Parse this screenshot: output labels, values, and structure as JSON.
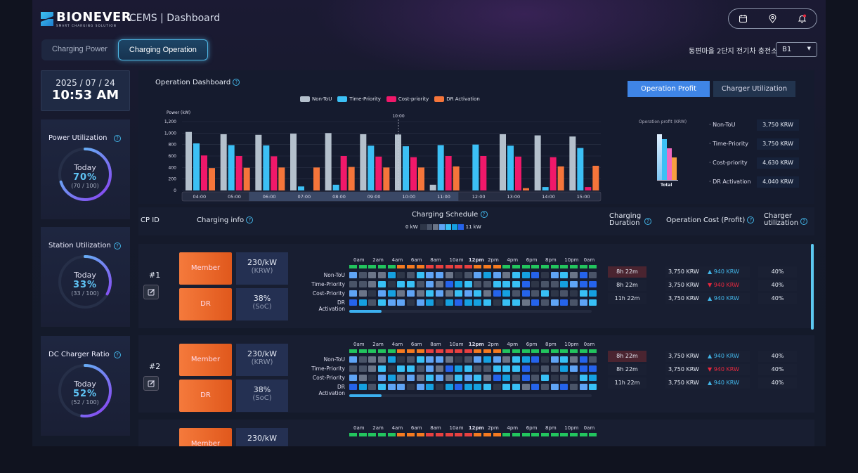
{
  "header": {
    "logo": "BIONEVER",
    "logo_sub": "SMART CHARGING SOLUTION",
    "title": "CEMS | Dashboard",
    "station": "동편마을 2단지 전기차 충전소",
    "station_select": "B1"
  },
  "tabs": [
    {
      "label": "Charging Power"
    },
    {
      "label": "Charging Operation"
    }
  ],
  "datetime": {
    "date": "2025 / 07 / 24",
    "time": "10:53 AM"
  },
  "gauges": [
    {
      "title": "Power Utilization",
      "today": "Today",
      "pct": "70%",
      "frac": "(70 / 100)",
      "value": 0.7
    },
    {
      "title": "Station Utilization",
      "today": "Today",
      "pct": "33%",
      "frac": "(33 / 100)",
      "value": 0.33
    },
    {
      "title": "DC Charger Ratio",
      "today": "Today",
      "pct": "52%",
      "frac": "(52 / 100)",
      "value": 0.52
    }
  ],
  "dashboard": {
    "title": "Operation Dashboard",
    "tab_profit": "Operation Profit",
    "tab_util": "Charger Utilization",
    "profit_label": "Operation profit (KRW)",
    "profit_total": "Total",
    "profit": [
      {
        "label": "· Non-ToU",
        "value": "3,750 KRW"
      },
      {
        "label": "· Time-Priority",
        "value": "3,750 KRW"
      },
      {
        "label": "· Cost-priority",
        "value": "4,630 KRW"
      },
      {
        "label": "· DR Activation",
        "value": "4,040 KRW"
      }
    ]
  },
  "chart_data": {
    "type": "bar",
    "ylabel": "Power (kW)",
    "ylim": [
      0,
      1200
    ],
    "yticks": [
      "0",
      "200",
      "400",
      "600",
      "800",
      "1,000",
      "1,200"
    ],
    "categories": [
      "04:00",
      "05:00",
      "06:00",
      "07:00",
      "08:00",
      "09:00",
      "10:00",
      "11:00",
      "12:00",
      "13:00",
      "14:00",
      "15:00"
    ],
    "marker": "10:00",
    "series": [
      {
        "name": "Non-ToU",
        "color": "#b4c0cc",
        "values": [
          1020,
          980,
          970,
          990,
          1000,
          980,
          975,
          100,
          0,
          980,
          960,
          940
        ]
      },
      {
        "name": "Time-Priority",
        "color": "#3cc0f5",
        "values": [
          820,
          790,
          785,
          70,
          100,
          780,
          770,
          790,
          800,
          780,
          60,
          740
        ]
      },
      {
        "name": "Cost-priority",
        "color": "#f0186a",
        "values": [
          610,
          600,
          595,
          0,
          600,
          590,
          580,
          600,
          600,
          590,
          580,
          60
        ]
      },
      {
        "name": "DR Activation",
        "color": "#f5753a",
        "values": [
          390,
          395,
          400,
          400,
          410,
          400,
          400,
          420,
          0,
          40,
          420,
          430
        ]
      }
    ]
  },
  "table": {
    "cp_id": "CP ID",
    "info": "Charging info",
    "schedule": "Charging Schedule",
    "scale_min": "0 kW",
    "scale_max": "11 kW",
    "duration": "Charging Duration",
    "cost": "Operation Cost (Profit)",
    "util": "Charger utilization",
    "hours": [
      "0am",
      "2am",
      "4am",
      "6am",
      "8am",
      "10am",
      "12pm",
      "2pm",
      "4pm",
      "6pm",
      "8pm",
      "10pm",
      "0am"
    ],
    "row_labels": [
      "Non-ToU",
      "Time-Priority",
      "Cost-Priority",
      "DR Activation"
    ],
    "tou": [
      0,
      0,
      0,
      0,
      0,
      1,
      1,
      1,
      2,
      2,
      2,
      2,
      2,
      1,
      1,
      1,
      0,
      0,
      0,
      0,
      0,
      0,
      0,
      0,
      0,
      0
    ],
    "levels": [
      [
        3,
        1,
        2,
        2,
        5,
        0,
        1,
        4,
        3,
        3,
        2,
        0,
        1,
        3,
        5,
        3,
        2,
        4,
        5,
        6,
        0,
        3,
        4,
        2,
        6,
        1
      ],
      [
        1,
        1,
        2,
        4,
        0,
        4,
        4,
        1,
        3,
        2,
        6,
        5,
        4,
        1,
        1,
        4,
        4,
        4,
        6,
        0,
        1,
        1,
        5,
        3,
        6,
        6
      ],
      [
        3,
        2,
        0,
        3,
        5,
        2,
        3,
        2,
        4,
        3,
        2,
        4,
        3,
        4,
        2,
        6,
        5,
        1,
        6,
        1,
        4,
        0,
        1,
        0,
        4,
        5
      ],
      [
        6,
        5,
        1,
        4,
        3,
        3,
        0,
        3,
        5,
        0,
        5,
        6,
        5,
        5,
        4,
        0,
        4,
        4,
        2,
        6,
        1,
        3,
        6,
        1,
        3,
        4
      ]
    ]
  },
  "cps": [
    {
      "id": "#1",
      "member": "Member",
      "dr": "DR",
      "rate": "230/kW",
      "rate_unit": "(KRW)",
      "soc": "38%",
      "soc_unit": "(SoC)",
      "rows": [
        {
          "dur": "8h 22m",
          "cost": "3,750 KRW",
          "delta": "940 KRW",
          "dir": "up",
          "util": "40%"
        },
        {
          "dur": "8h 22m",
          "cost": "3,750 KRW",
          "delta": "940 KRW",
          "dir": "down",
          "util": "40%"
        },
        {
          "dur": "11h 22m",
          "cost": "3,750 KRW",
          "delta": "940 KRW",
          "dir": "up",
          "util": "40%"
        }
      ]
    },
    {
      "id": "#2",
      "member": "Member",
      "dr": "DR",
      "rate": "230/kW",
      "rate_unit": "(KRW)",
      "soc": "38%",
      "soc_unit": "(SoC)",
      "rows": [
        {
          "dur": "8h 22m",
          "cost": "3,750 KRW",
          "delta": "940 KRW",
          "dir": "up",
          "util": "40%"
        },
        {
          "dur": "8h 22m",
          "cost": "3,750 KRW",
          "delta": "940 KRW",
          "dir": "down",
          "util": "40%"
        },
        {
          "dur": "11h 22m",
          "cost": "3,750 KRW",
          "delta": "940 KRW",
          "dir": "up",
          "util": "40%"
        }
      ]
    },
    {
      "member": "Member",
      "rate": "230/kW"
    }
  ],
  "colors": {
    "levels": [
      "#2e3648",
      "#4a5468",
      "#6b7588",
      "#5fa4f5",
      "#38c0f5",
      "#15a0e0",
      "#2563eb"
    ],
    "tou": [
      "#22c55e",
      "#f57a20",
      "#e84040"
    ]
  }
}
